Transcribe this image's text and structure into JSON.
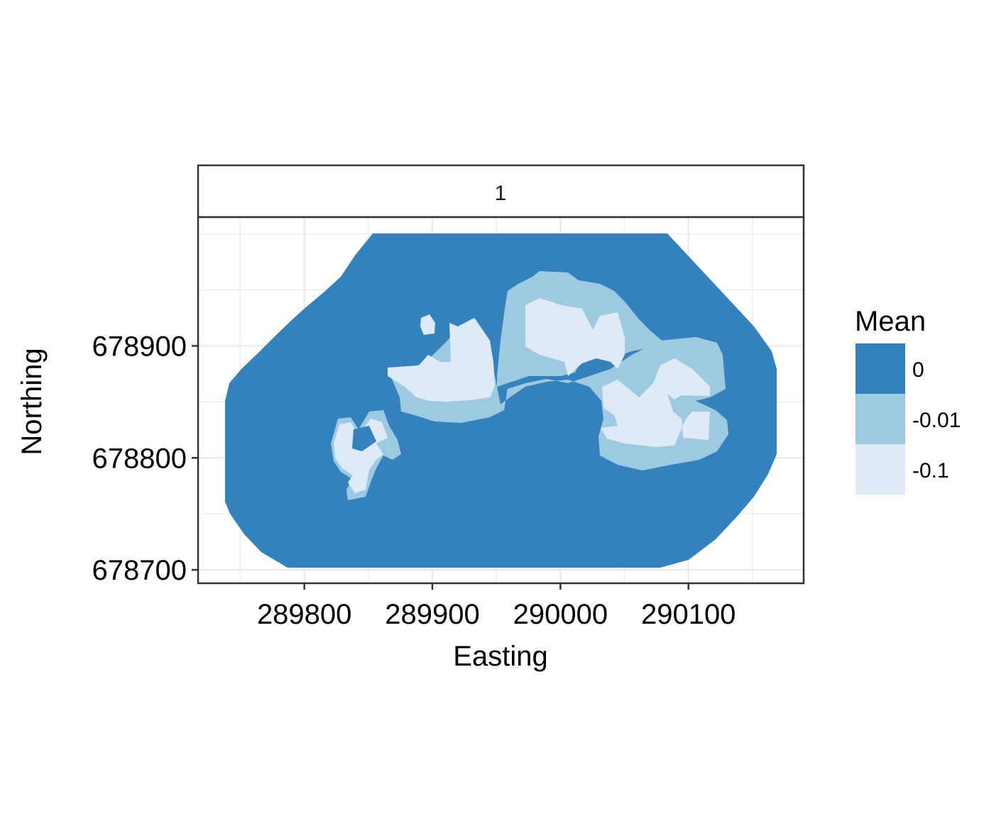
{
  "chart_data": {
    "type": "heatmap",
    "facet": "1",
    "xlabel": "Easting",
    "ylabel": "Northing",
    "xlim": [
      289717,
      290190
    ],
    "ylim": [
      678688,
      679015
    ],
    "x_ticks": [
      289800,
      289900,
      290000,
      290100
    ],
    "y_ticks": [
      678700,
      678800,
      678900
    ],
    "grid": true,
    "legend": {
      "title": "Mean",
      "position": "right",
      "entries": [
        {
          "label": "0",
          "color": "#3382bd"
        },
        {
          "label": "-0.01",
          "color": "#9ecae1"
        },
        {
          "label": "-0.1",
          "color": "#deebf7"
        }
      ]
    },
    "colors": {
      "level_0": "#3382bd",
      "level_neg001": "#9ecae1",
      "level_neg01": "#deebf7",
      "gridline": "#ebebeb",
      "panel_border": "#333333"
    }
  }
}
